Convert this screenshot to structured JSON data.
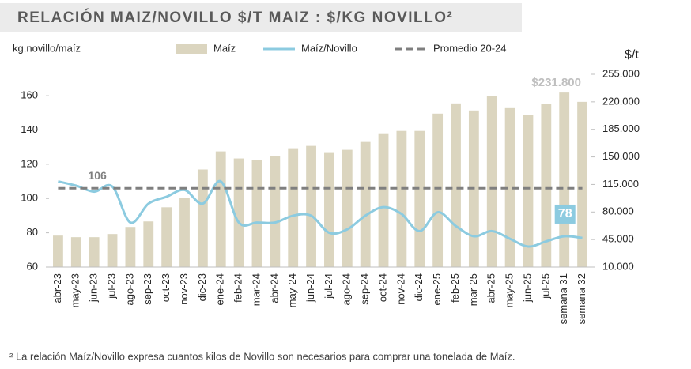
{
  "chart_data": {
    "type": "combo",
    "title": "RELACIÓN MAIZ/NOVILLO $/T MAIZ : $/KG NOVILLO²",
    "y_label": "kg.novillo/maíz",
    "y2_label": "$/t",
    "footnote": "² La relación Maíz/Novillo expresa cuantos kilos de Novillo son necesarios para comprar una tonelada de Maíz.",
    "categories": [
      "abr-23",
      "may-23",
      "jun-23",
      "jul-23",
      "ago-23",
      "sep-23",
      "oct-23",
      "nov-23",
      "dic-23",
      "ene-24",
      "feb-24",
      "mar-24",
      "abr-24",
      "may-24",
      "jun-24",
      "jul-24",
      "ago-24",
      "sep-24",
      "oct-24",
      "nov-24",
      "dic-24",
      "ene-25",
      "feb-25",
      "mar-25",
      "abr-25",
      "may-25",
      "jun-25",
      "jul-25",
      "semana 31",
      "semana 32"
    ],
    "series": [
      {
        "name": "Maíz",
        "type": "bar",
        "axis": "y2",
        "color": "#dbd5bf",
        "values": [
          50000,
          48000,
          48000,
          52000,
          61000,
          68000,
          86000,
          98000,
          134000,
          157000,
          148000,
          146000,
          151000,
          161000,
          164000,
          155000,
          159000,
          169000,
          180000,
          183000,
          183000,
          205000,
          218000,
          209000,
          227000,
          212000,
          203000,
          217000,
          231800,
          220000
        ],
        "value_labels": [
          null,
          null,
          null,
          null,
          null,
          null,
          null,
          null,
          null,
          null,
          null,
          null,
          null,
          null,
          null,
          null,
          null,
          null,
          null,
          null,
          null,
          null,
          null,
          null,
          null,
          null,
          null,
          null,
          "$231.800",
          null
        ]
      },
      {
        "name": "Maíz/Novillo",
        "type": "line",
        "axis": "y",
        "color": "#8ccbe0",
        "values": [
          110,
          107.5,
          104,
          107,
          86,
          97,
          101,
          105,
          97,
          110,
          86,
          86,
          86,
          90,
          90,
          80,
          82,
          90,
          95,
          91,
          81,
          92,
          84,
          78,
          81,
          76.5,
          72,
          75,
          78,
          77
        ],
        "value_labels": [
          null,
          null,
          null,
          null,
          null,
          null,
          null,
          null,
          null,
          null,
          null,
          null,
          null,
          null,
          null,
          null,
          null,
          null,
          null,
          null,
          null,
          null,
          null,
          null,
          null,
          null,
          null,
          null,
          "78",
          null
        ]
      },
      {
        "name": "Promedio 20-24",
        "type": "hline",
        "axis": "y",
        "color": "#7f7f7f",
        "value": 106,
        "value_label": "106"
      }
    ],
    "ylim": [
      60,
      172.5
    ],
    "yticks": [
      60,
      80,
      100,
      120,
      140,
      160
    ],
    "y2lim": [
      10000,
      255000
    ],
    "y2ticks": [
      {
        "value": 10000,
        "label": "10.000"
      },
      {
        "value": 45000,
        "label": "45.000"
      },
      {
        "value": 80000,
        "label": "80.000"
      },
      {
        "value": 115000,
        "label": "115.000"
      },
      {
        "value": 150000,
        "label": "150.000"
      },
      {
        "value": 185000,
        "label": "185.000"
      },
      {
        "value": 220000,
        "label": "220.000"
      },
      {
        "value": 255000,
        "label": "255.000"
      }
    ]
  }
}
